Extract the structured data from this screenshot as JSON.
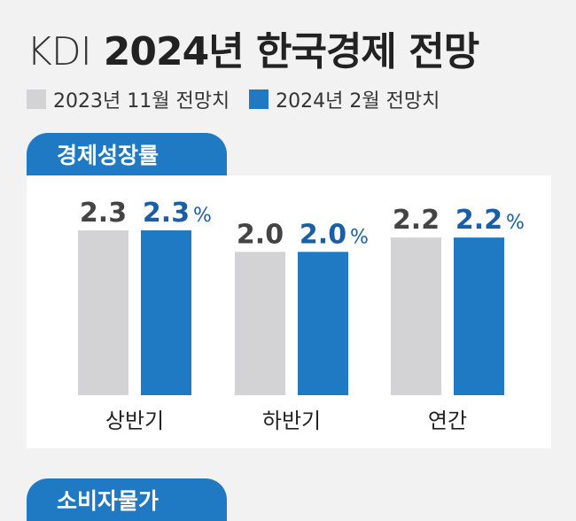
{
  "header": {
    "org": "KDI",
    "title": "2024년 한국경제 전망"
  },
  "legend": [
    {
      "label": "2023년 11월 전망치",
      "color": "#d3d3d5"
    },
    {
      "label": "2024년 2월 전망치",
      "color": "#1f79c3"
    }
  ],
  "sections": {
    "growth": "경제성장률",
    "cpi": "소비자물가"
  },
  "chart_data": {
    "type": "bar",
    "title": "경제성장률",
    "categories": [
      "상반기",
      "하반기",
      "연간"
    ],
    "series": [
      {
        "name": "2023년 11월 전망치",
        "values": [
          2.3,
          2.0,
          2.2
        ],
        "labels": [
          "2.3",
          "2.0",
          "2.2"
        ],
        "color": "#d3d3d5",
        "label_color": "#444444"
      },
      {
        "name": "2024년 2월 전망치",
        "values": [
          2.3,
          2.0,
          2.2
        ],
        "labels": [
          "2.3",
          "2.0",
          "2.2"
        ],
        "color": "#1f79c3",
        "label_color": "#1a5fa6"
      }
    ],
    "unit": "%",
    "ylim": [
      0,
      2.3
    ]
  }
}
